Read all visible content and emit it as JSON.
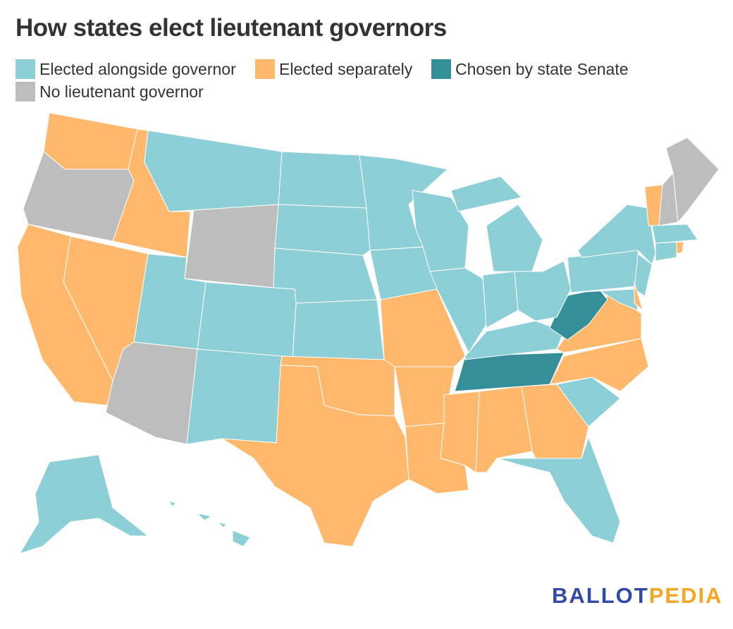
{
  "title": "How states elect lieutenant governors",
  "legend": [
    {
      "key": "alongside",
      "label": "Elected alongside governor",
      "color": "#8ccfd6"
    },
    {
      "key": "separate",
      "label": "Elected separately",
      "color": "#ffb86c"
    },
    {
      "key": "senate",
      "label": "Chosen by state Senate",
      "color": "#358f99"
    },
    {
      "key": "none",
      "label": "No lieutenant governor",
      "color": "#bdbdbd"
    }
  ],
  "map_data": {
    "WA": "separate",
    "OR": "none",
    "ID": "separate",
    "MT": "alongside",
    "WY": "none",
    "ND": "alongside",
    "SD": "alongside",
    "NE": "alongside",
    "KS": "alongside",
    "CO": "alongside",
    "UT": "alongside",
    "NV": "separate",
    "CA": "separate",
    "AZ": "none",
    "NM": "alongside",
    "OK": "separate",
    "TX": "separate",
    "MN": "alongside",
    "IA": "alongside",
    "MO": "separate",
    "AR": "separate",
    "LA": "separate",
    "MS": "separate",
    "AL": "separate",
    "GA": "separate",
    "FL": "alongside",
    "SC": "alongside",
    "NC": "separate",
    "TN": "senate",
    "KY": "alongside",
    "VA": "separate",
    "WV": "senate",
    "WI": "alongside",
    "IL": "alongside",
    "IN": "alongside",
    "OH": "alongside",
    "MI": "alongside",
    "PA": "alongside",
    "NY": "alongside",
    "NJ": "alongside",
    "MD": "alongside",
    "DE": "separate",
    "VT": "separate",
    "NH": "none",
    "ME": "none",
    "MA": "alongside",
    "CT": "alongside",
    "RI": "separate",
    "AK": "alongside",
    "HI": "alongside"
  },
  "logo": {
    "part1": "BALLOT",
    "part2": "PEDIA",
    "color1": "#3349a8",
    "color2": "#f5a623"
  }
}
